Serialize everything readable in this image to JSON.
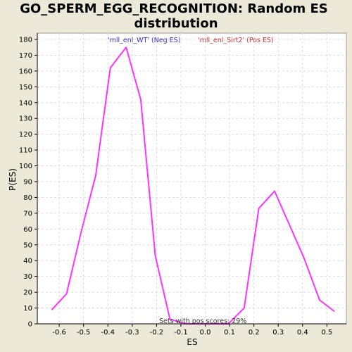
{
  "chart_data": {
    "type": "line",
    "title_line1": "GO_SPERM_EGG_RECOGNITION: Random ES",
    "title_line2": "distribution",
    "xlabel": "ES",
    "ylabel": "P(ES)",
    "xlim": [
      -0.69,
      0.58
    ],
    "ylim": [
      0,
      184
    ],
    "x_ticks": [
      -0.6,
      -0.5,
      -0.4,
      -0.3,
      -0.2,
      -0.1,
      0.0,
      0.1,
      0.2,
      0.3,
      0.4,
      0.5
    ],
    "x_tick_labels": [
      "-0.6",
      "-0.5",
      "-0.4",
      "-0.3",
      "-0.2",
      "-0.1",
      "0.0",
      "0.1",
      "0.2",
      "0.3",
      "0.4",
      "0.5"
    ],
    "y_ticks": [
      0,
      10,
      20,
      30,
      40,
      50,
      60,
      70,
      80,
      90,
      100,
      110,
      120,
      130,
      140,
      150,
      160,
      170,
      180
    ],
    "grid": true,
    "series": [
      {
        "color": "#FF33FF",
        "x": [
          -0.63,
          -0.57,
          -0.51,
          -0.45,
          -0.39,
          -0.325,
          -0.265,
          -0.205,
          -0.145,
          -0.085,
          -0.025,
          0.035,
          0.095,
          0.16,
          0.22,
          0.285,
          0.345,
          0.405,
          0.47,
          0.53
        ],
        "y": [
          9,
          19,
          58,
          94,
          162,
          175,
          142,
          43,
          3,
          0,
          0,
          0,
          0,
          10,
          73,
          84,
          63,
          42,
          15,
          8
        ]
      }
    ],
    "legend": [
      {
        "label": "'mll_enl_WT' (Neg ES)",
        "color": "#3333CC"
      },
      {
        "label": "'mll_enl_Sirt2' (Pos ES)",
        "color": "#CC3333"
      }
    ],
    "annotation": "Sets with pos scores: 29%"
  }
}
